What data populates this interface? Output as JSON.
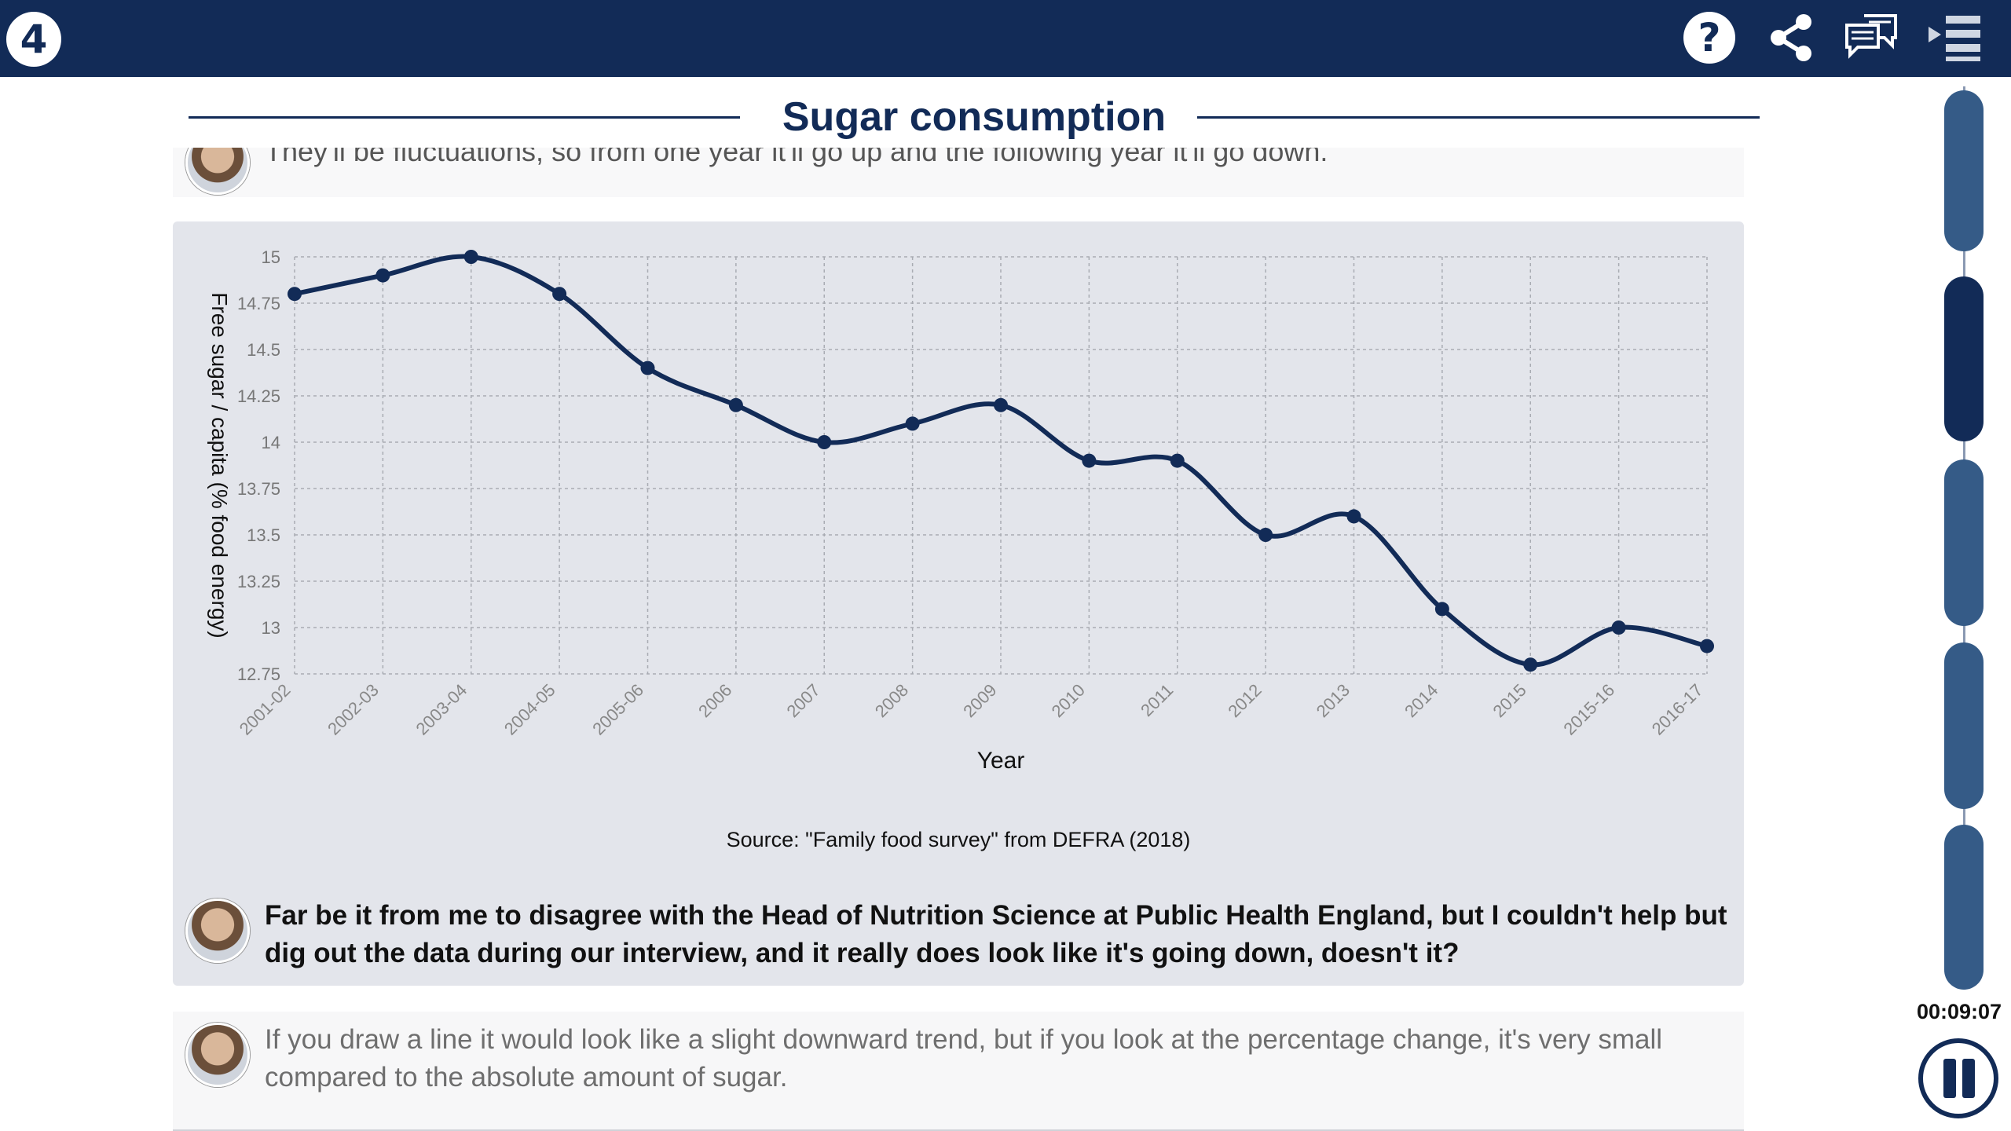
{
  "header": {
    "logo_text": "4",
    "icons": [
      "help-icon",
      "share-icon",
      "transcript-icon",
      "menu-icon"
    ],
    "help_glyph": "?"
  },
  "title": "Sugar consumption",
  "previous_message": "They'll be fluctuations, so from one year it'll go up and the following year it'll go down.",
  "chart_data": {
    "type": "line",
    "categories": [
      "2001-02",
      "2002-03",
      "2003-04",
      "2004-05",
      "2005-06",
      "2006",
      "2007",
      "2008",
      "2009",
      "2010",
      "2011",
      "2012",
      "2013",
      "2014",
      "2015",
      "2015-16",
      "2016-17"
    ],
    "values": [
      14.8,
      14.9,
      15.0,
      14.8,
      14.4,
      14.2,
      14.0,
      14.1,
      14.2,
      13.9,
      13.9,
      13.5,
      13.6,
      13.1,
      12.8,
      13.0,
      12.9
    ],
    "xlabel": "Year",
    "ylabel": "Free sugar / capita (% food energy)",
    "yticks": [
      "15",
      "14.75",
      "14.5",
      "14.25",
      "14",
      "13.75",
      "13.5",
      "13.25",
      "13",
      "12.75"
    ],
    "ylim": [
      12.75,
      15
    ],
    "grid": true,
    "line_color": "#122b57"
  },
  "source_note": "Source: \"Family food survey\" from DEFRA (2018)",
  "current_message": "Far be it from me to disagree with the Head of Nutrition Science at Public Health England, but I couldn't help but dig out the data during our interview, and it really does look like it's going down, doesn't it?",
  "next_message": "If you draw a line it would look like a slight downward trend, but if you look at the percentage change, it's very small compared to the absolute amount of sugar.",
  "player": {
    "time": "00:09:07",
    "segments": 5,
    "active_segment": 2,
    "state": "playing"
  },
  "colors": {
    "brand": "#122b57",
    "segment": "#355b87",
    "chart_bg": "#e3e5eb"
  }
}
